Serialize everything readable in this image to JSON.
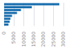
{
  "chart_data": {
    "type": "bar",
    "orientation": "horizontal",
    "categories": [
      null,
      null,
      null,
      null,
      null,
      null,
      null,
      null
    ],
    "values": [
      27900,
      14000,
      8500,
      6500,
      4000,
      3200,
      2800,
      2200
    ],
    "color": "#1a6faf",
    "xlim": [
      0,
      30000
    ],
    "xticks": [
      0,
      5000,
      10000,
      15000,
      20000,
      25000,
      30000
    ],
    "grid": true,
    "tick_labels": "x"
  }
}
